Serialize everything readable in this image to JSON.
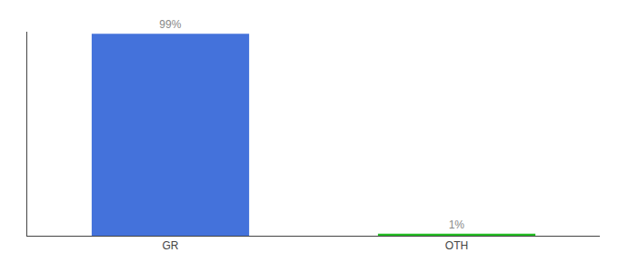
{
  "chart_data": {
    "type": "bar",
    "categories": [
      "GR",
      "OTH"
    ],
    "values": [
      99,
      1
    ],
    "colors": [
      "#4472db",
      "#22bb22"
    ],
    "data_labels": true,
    "value_labels": [
      "99%",
      "1%"
    ],
    "ylim": [
      0,
      100
    ],
    "tick_labels": "x"
  }
}
